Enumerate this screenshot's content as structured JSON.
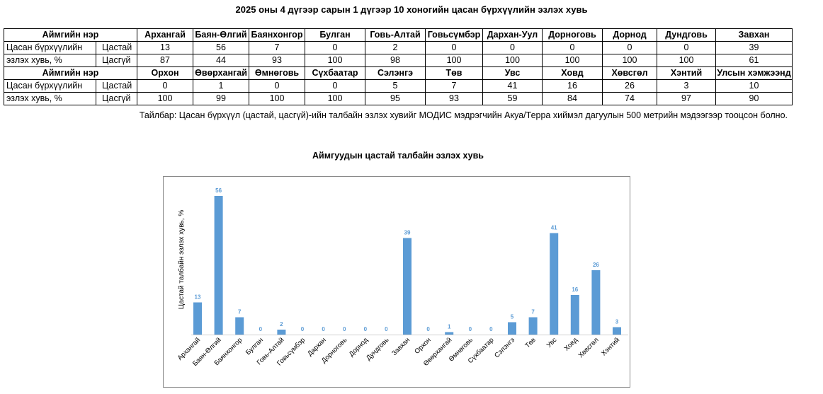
{
  "page": {
    "title": "2025 оны 4 дүгээр сарын 1 дүгээр 10 хоногийн цасан бүрхүүлийн эзлэх хувь",
    "note": "Тайлбар: Цасан бүрхүүл (цастай, цасгүй)-ийн талбайн эзлэх хувийг МОДИС мэдрэгчийн Акуа/Терра хиймэл дагуулын 500 метрийн мэдээгээр тооцсон болно."
  },
  "table": {
    "header_label": "Аймгийн нэр",
    "row_label_line1": "Цасан бүрхүүлийн",
    "row_label_line2": "эзлэх хувь, %",
    "with_snow_label": "Цастай",
    "without_snow_label": "Цасгүй",
    "block1": {
      "names": [
        "Архангай",
        "Баян-Өлгий",
        "Баянхонгор",
        "Булган",
        "Говь-Алтай",
        "Говьсүмбэр",
        "Дархан-Уул",
        "Дорноговь",
        "Дорнод",
        "Дундговь",
        "Завхан"
      ],
      "with_snow": [
        "13",
        "56",
        "7",
        "0",
        "2",
        "0",
        "0",
        "0",
        "0",
        "0",
        "39"
      ],
      "without_snow": [
        "87",
        "44",
        "93",
        "100",
        "98",
        "100",
        "100",
        "100",
        "100",
        "100",
        "61"
      ]
    },
    "block2": {
      "names": [
        "Орхон",
        "Өвөрхангай",
        "Өмнөговь",
        "Сүхбаатар",
        "Сэлэнгэ",
        "Төв",
        "Увс",
        "Ховд",
        "Хөвсгөл",
        "Хэнтий",
        "Улсын хэмжээнд"
      ],
      "with_snow": [
        "0",
        "1",
        "0",
        "0",
        "5",
        "7",
        "41",
        "16",
        "26",
        "3",
        "10"
      ],
      "without_snow": [
        "100",
        "99",
        "100",
        "100",
        "95",
        "93",
        "59",
        "84",
        "74",
        "97",
        "90"
      ]
    }
  },
  "chart_data": {
    "type": "bar",
    "title": "Аймгуудын цастай талбайн эзлэх хувь",
    "ylabel": "Цастай талбайн эзлэх хувь, %",
    "xlabel": "",
    "categories": [
      "Архангай",
      "Баян-Өлгий",
      "Баянхонгор",
      "Булган",
      "Говь-Алтай",
      "Говьсүмбэр",
      "Дархан",
      "Дорноговь",
      "Дорнод",
      "Дундговь",
      "Завхан",
      "Орхон",
      "Өвөрхангай",
      "Өмнөговь",
      "Сүхбаатар",
      "Сэлэнгэ",
      "Төв",
      "Увс",
      "Ховд",
      "Хөвсгөл",
      "Хэнтий"
    ],
    "values": [
      13,
      56,
      7,
      0,
      2,
      0,
      0,
      0,
      0,
      0,
      39,
      0,
      1,
      0,
      0,
      5,
      7,
      41,
      16,
      26,
      3
    ],
    "ylim": [
      0,
      56
    ],
    "grid": false,
    "legend": "none",
    "data_labels": true,
    "bar_color": "#5B9BD5",
    "label_color": "#5B9BD5"
  }
}
